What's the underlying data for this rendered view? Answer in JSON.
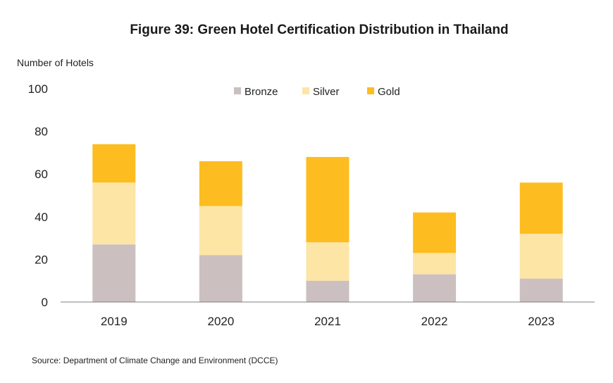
{
  "chart_data": {
    "type": "bar",
    "stacked": true,
    "title": "Figure 39: Green Hotel Certification Distribution in Thailand",
    "ylabel": "Number of Hotels",
    "xlabel": "",
    "categories": [
      "2019",
      "2020",
      "2021",
      "2022",
      "2023"
    ],
    "ylim": [
      0,
      100
    ],
    "yticks": [
      0,
      20,
      40,
      60,
      80,
      100
    ],
    "series": [
      {
        "name": "Bronze",
        "color": "#cbbfbf",
        "values": [
          27,
          22,
          10,
          13,
          11
        ]
      },
      {
        "name": "Silver",
        "color": "#fde5a6",
        "values": [
          29,
          23,
          18,
          10,
          21
        ]
      },
      {
        "name": "Gold",
        "color": "#fdbd20",
        "values": [
          18,
          21,
          40,
          19,
          24
        ]
      }
    ],
    "legend_position": "top-center",
    "grid": false,
    "source": "Source: Department of Climate Change and Environment (DCCE)"
  }
}
